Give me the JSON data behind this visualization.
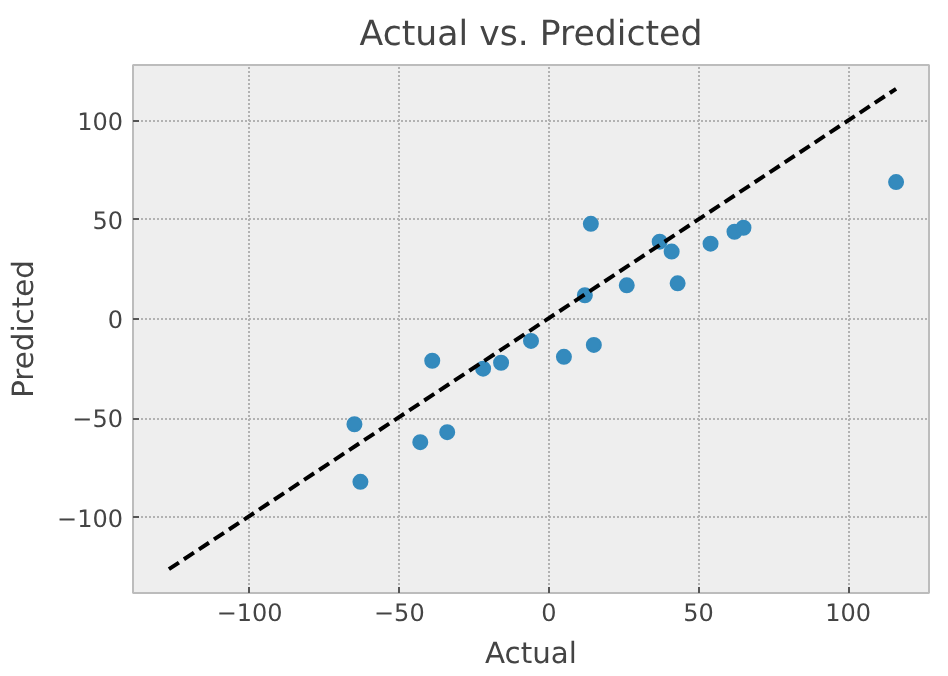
{
  "chart_data": {
    "type": "scatter",
    "title": "Actual vs. Predicted",
    "xlabel": "Actual",
    "ylabel": "Predicted",
    "series": [
      {
        "color": "#348abd",
        "marker": "circle",
        "x": [
          116,
          14,
          62,
          65,
          54,
          37,
          41,
          43,
          26,
          12,
          -6,
          5,
          15,
          -22,
          -16,
          -39,
          -65,
          -63,
          -43,
          -34
        ],
        "values": [
          69,
          48,
          44,
          46,
          38,
          39,
          34,
          18,
          17,
          12,
          -11,
          -19,
          -13,
          -25,
          -22,
          -21,
          -53,
          -82,
          -62,
          -57
        ]
      },
      {
        "type": "line",
        "color": "#000000",
        "line_style": "dashed",
        "x": [
          -127,
          116
        ],
        "values": [
          -126,
          116
        ]
      }
    ],
    "xlim": [
      -139,
      127
    ],
    "ylim": [
      -138,
      128
    ],
    "xticks": [
      {
        "value": -100,
        "label": "−100"
      },
      {
        "value": -50,
        "label": "−50"
      },
      0,
      50,
      100
    ],
    "yticks": [
      {
        "value": -100,
        "label": "−100"
      },
      {
        "value": -50,
        "label": "−50"
      },
      0,
      50,
      100
    ],
    "grid": true
  }
}
